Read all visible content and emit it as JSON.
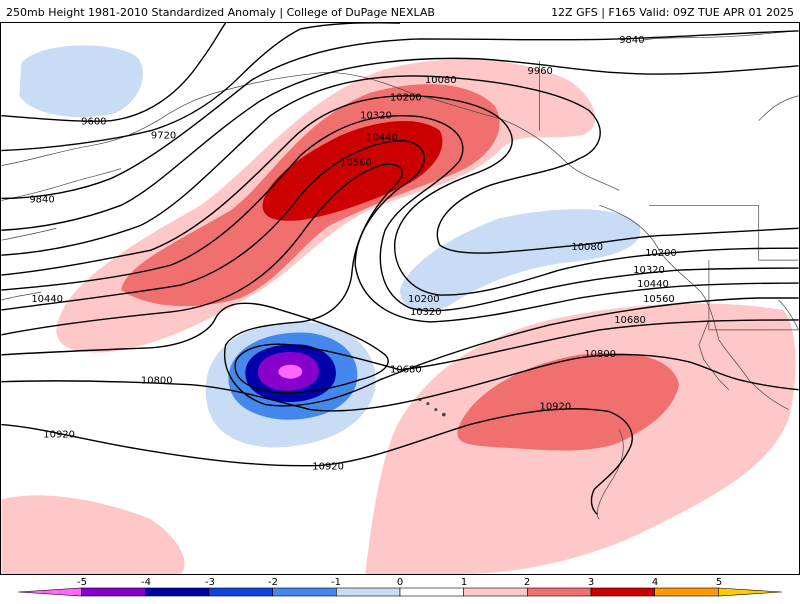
{
  "header": {
    "title": "250mb Height 1981-2010 Standardized Anomaly | College of DuPage NEXLAB",
    "run_info": "12Z GFS | F165 Valid: 09Z TUE APR 01 2025"
  },
  "map": {
    "contour_labels": [
      "9600",
      "9720",
      "9840",
      "9840",
      "9960",
      "10080",
      "10080",
      "10200",
      "10200",
      "10200",
      "10320",
      "10320",
      "10320",
      "10440",
      "10440",
      "10440",
      "10560",
      "10560",
      "10680",
      "10680",
      "10800",
      "10800",
      "10920",
      "10920",
      "10920"
    ]
  },
  "legend": {
    "tick_labels": [
      "-5",
      "-4",
      "-3",
      "-2",
      "-1",
      "0",
      "1",
      "2",
      "3",
      "4",
      "5"
    ],
    "colors": [
      "#ff66ff",
      "#8800cc",
      "#0000aa",
      "#1144dd",
      "#4488ee",
      "#c8dcf5",
      "#ffffff",
      "#ffc8c8",
      "#f07070",
      "#cc0000",
      "#ff9900",
      "#ffcc00"
    ]
  }
}
